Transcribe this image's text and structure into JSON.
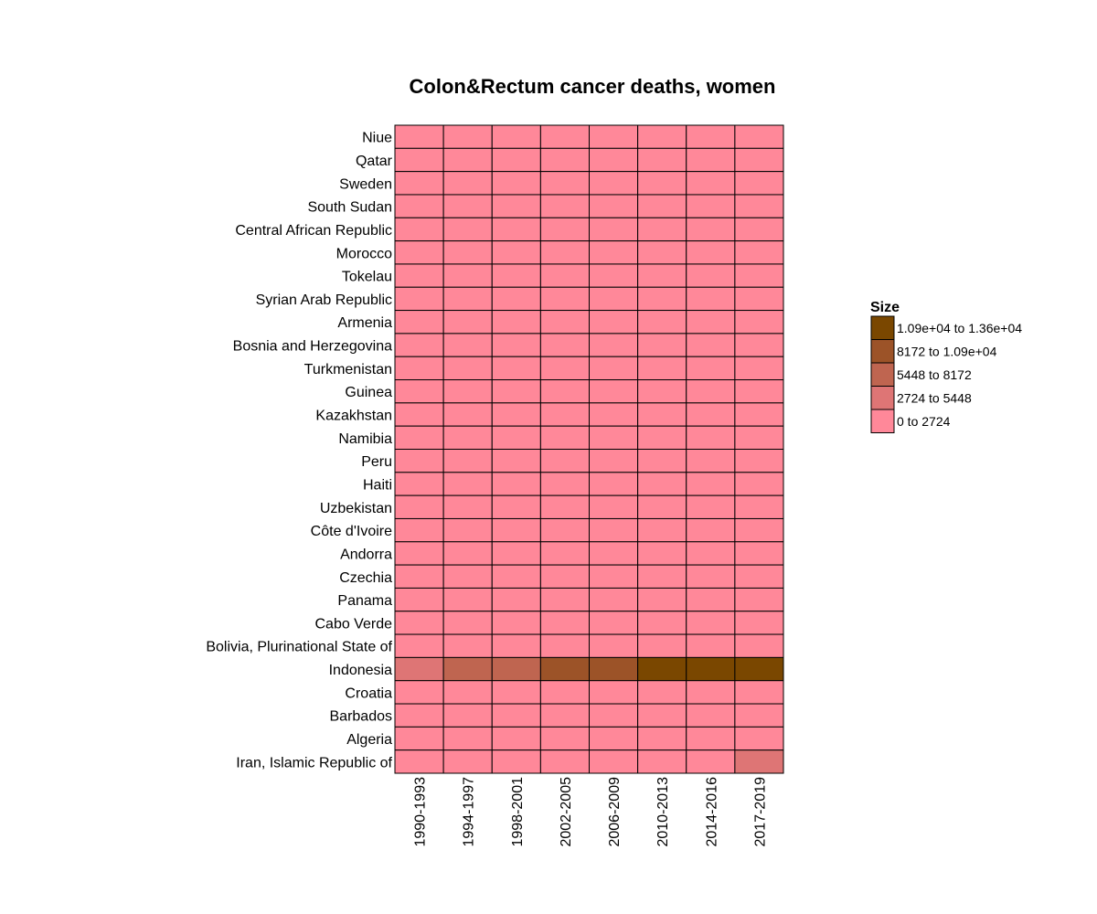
{
  "chart_data": {
    "type": "heatmap",
    "title": "Colon&Rectum cancer deaths, women",
    "x_categories": [
      "1990-1993",
      "1994-1997",
      "1998-2001",
      "2002-2005",
      "2006-2009",
      "2010-2013",
      "2014-2016",
      "2017-2019"
    ],
    "y_categories": [
      "Niue",
      "Qatar",
      "Sweden",
      "South Sudan",
      "Central African Republic",
      "Morocco",
      "Tokelau",
      "Syrian Arab Republic",
      "Armenia",
      "Bosnia and Herzegovina",
      "Turkmenistan",
      "Guinea",
      "Kazakhstan",
      "Namibia",
      "Peru",
      "Haiti",
      "Uzbekistan",
      "Côte d'Ivoire",
      "Andorra",
      "Czechia",
      "Panama",
      "Cabo Verde",
      "Bolivia, Plurinational State of",
      "Indonesia",
      "Croatia",
      "Barbados",
      "Algeria",
      "Iran, Islamic Republic of"
    ],
    "bin_index_matrix": [
      [
        0,
        0,
        0,
        0,
        0,
        0,
        0,
        0
      ],
      [
        0,
        0,
        0,
        0,
        0,
        0,
        0,
        0
      ],
      [
        0,
        0,
        0,
        0,
        0,
        0,
        0,
        0
      ],
      [
        0,
        0,
        0,
        0,
        0,
        0,
        0,
        0
      ],
      [
        0,
        0,
        0,
        0,
        0,
        0,
        0,
        0
      ],
      [
        0,
        0,
        0,
        0,
        0,
        0,
        0,
        0
      ],
      [
        0,
        0,
        0,
        0,
        0,
        0,
        0,
        0
      ],
      [
        0,
        0,
        0,
        0,
        0,
        0,
        0,
        0
      ],
      [
        0,
        0,
        0,
        0,
        0,
        0,
        0,
        0
      ],
      [
        0,
        0,
        0,
        0,
        0,
        0,
        0,
        0
      ],
      [
        0,
        0,
        0,
        0,
        0,
        0,
        0,
        0
      ],
      [
        0,
        0,
        0,
        0,
        0,
        0,
        0,
        0
      ],
      [
        0,
        0,
        0,
        0,
        0,
        0,
        0,
        0
      ],
      [
        0,
        0,
        0,
        0,
        0,
        0,
        0,
        0
      ],
      [
        0,
        0,
        0,
        0,
        0,
        0,
        0,
        0
      ],
      [
        0,
        0,
        0,
        0,
        0,
        0,
        0,
        0
      ],
      [
        0,
        0,
        0,
        0,
        0,
        0,
        0,
        0
      ],
      [
        0,
        0,
        0,
        0,
        0,
        0,
        0,
        0
      ],
      [
        0,
        0,
        0,
        0,
        0,
        0,
        0,
        0
      ],
      [
        0,
        0,
        0,
        0,
        0,
        0,
        0,
        0
      ],
      [
        0,
        0,
        0,
        0,
        0,
        0,
        0,
        0
      ],
      [
        0,
        0,
        0,
        0,
        0,
        0,
        0,
        0
      ],
      [
        0,
        0,
        0,
        0,
        0,
        0,
        0,
        0
      ],
      [
        1,
        2,
        2,
        3,
        3,
        4,
        4,
        4
      ],
      [
        0,
        0,
        0,
        0,
        0,
        0,
        0,
        0
      ],
      [
        0,
        0,
        0,
        0,
        0,
        0,
        0,
        0
      ],
      [
        0,
        0,
        0,
        0,
        0,
        0,
        0,
        0
      ],
      [
        0,
        0,
        0,
        0,
        0,
        0,
        0,
        1
      ]
    ],
    "legend": {
      "title": "Size",
      "placement": "right",
      "bins": [
        {
          "label": "0 to 2724",
          "color": "#ff8899"
        },
        {
          "label": "2724 to 5448",
          "color": "#de7575"
        },
        {
          "label": "5448 to 8172",
          "color": "#bf6550"
        },
        {
          "label": "8172 to 1.09e+04",
          "color": "#9c5328"
        },
        {
          "label": "1.09e+04 to 1.36e+04",
          "color": "#7a4700"
        }
      ]
    },
    "grid": false
  }
}
